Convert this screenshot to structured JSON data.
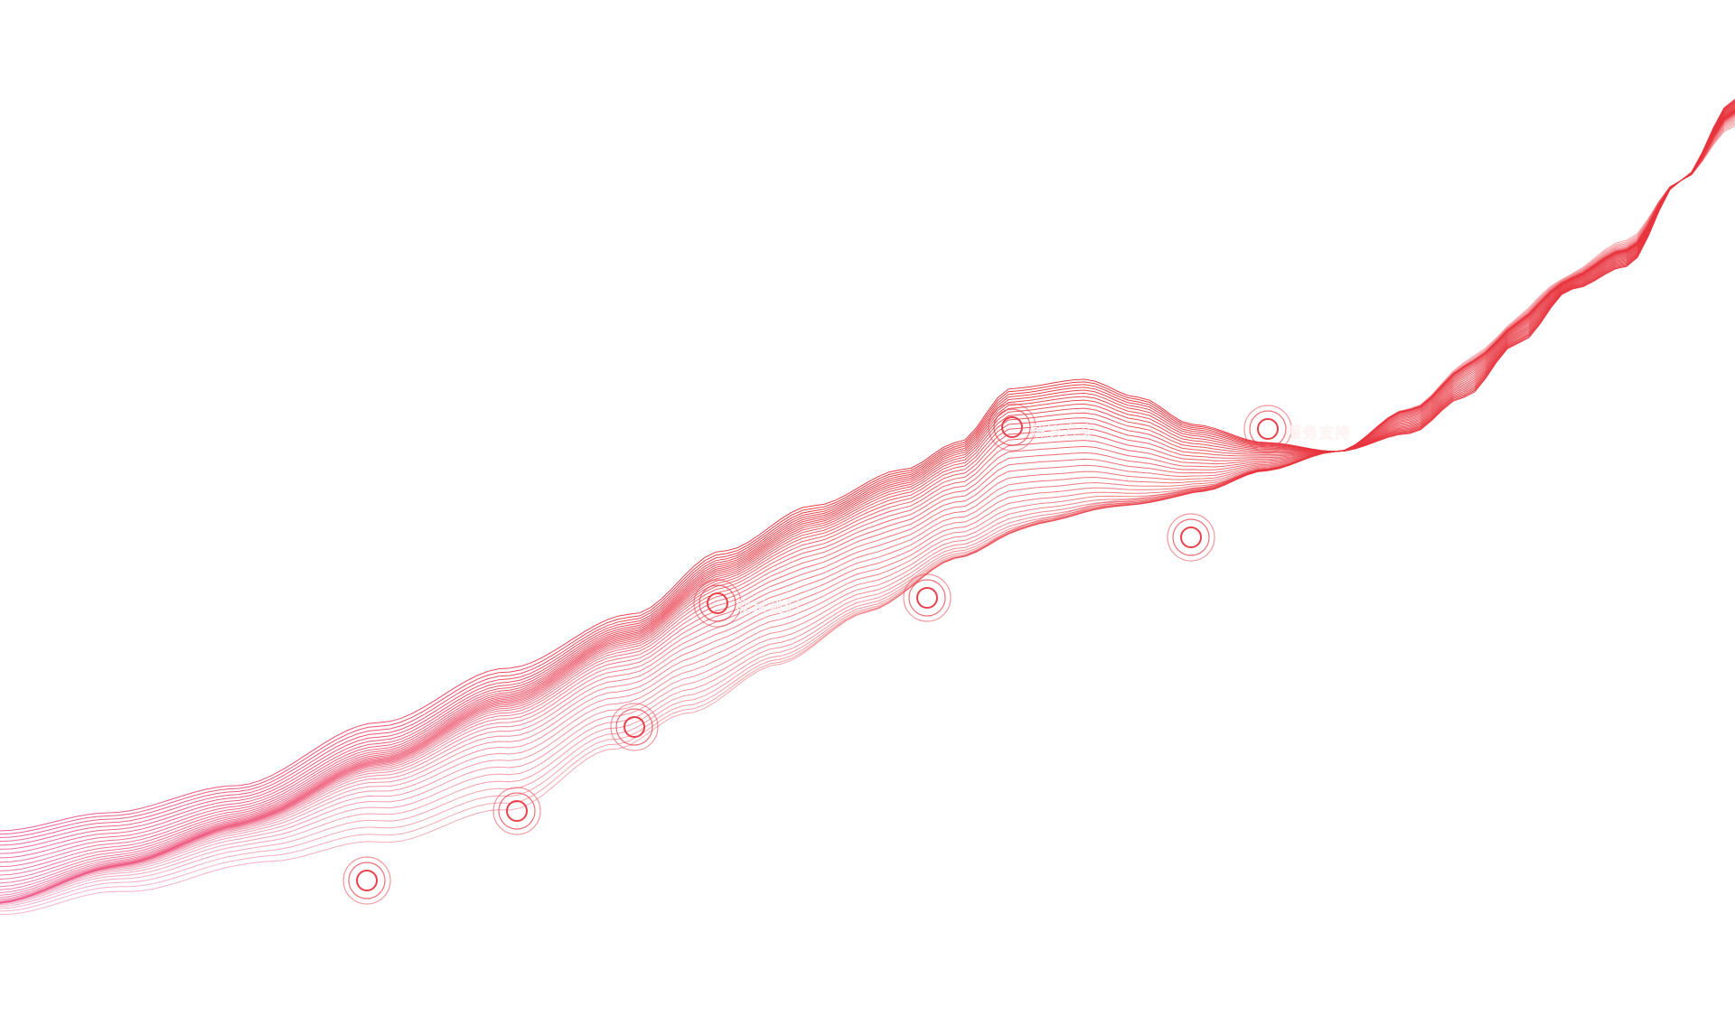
{
  "colors": {
    "background": "#ffffff",
    "wave_dark": "#e8323c",
    "wave_light": "#ee5a8c",
    "marker": "#e8414b"
  },
  "markers": [
    {
      "name": "marker-1",
      "icon": "target-ring-icon",
      "label": ""
    },
    {
      "name": "marker-2",
      "icon": "target-ring-icon",
      "label": ""
    },
    {
      "name": "marker-3",
      "icon": "target-ring-icon",
      "label": ""
    },
    {
      "name": "marker-4",
      "icon": "target-ring-icon",
      "label": "联系我们"
    },
    {
      "name": "marker-5",
      "icon": "target-ring-icon",
      "label": ""
    },
    {
      "name": "marker-6",
      "icon": "target-ring-icon",
      "label": "解决方案"
    },
    {
      "name": "marker-7",
      "icon": "target-ring-icon",
      "label": ""
    },
    {
      "name": "marker-8",
      "icon": "target-ring-icon",
      "label": "服务支持"
    }
  ]
}
